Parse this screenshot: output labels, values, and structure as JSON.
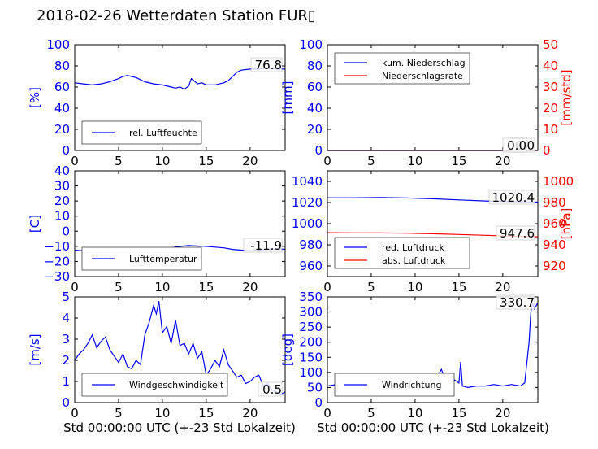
{
  "title": "2018-02-26 Wetterdaten Station FUR▯",
  "xlabel": "Std 00:00:00 UTC (+-23 Std Lokalzeit)",
  "colors": {
    "primary": "#0000ff",
    "secondary": "#ff0000",
    "light": "#8080ff"
  },
  "chart_data": [
    {
      "type": "line",
      "id": "humidity",
      "xlim": [
        0,
        24
      ],
      "ylim": [
        0,
        100
      ],
      "ylabel": "[%]",
      "xticks": [
        "0",
        "5",
        "10",
        "15",
        "20"
      ],
      "yticks": [
        "0",
        "20",
        "40",
        "60",
        "80",
        "100"
      ],
      "legend": [
        "rel. Luftfeuchte"
      ],
      "legend_position": "lower-left",
      "annotation": "76.8",
      "series": [
        {
          "name": "rel. Luftfeuchte",
          "color": "#0000ff",
          "x": [
            0,
            1,
            2,
            3,
            4,
            5,
            5.5,
            6,
            6.5,
            7,
            8,
            9,
            10,
            11,
            11.5,
            12,
            12.5,
            13,
            13.3,
            13.6,
            14,
            14.5,
            15,
            16,
            17,
            17.5,
            18,
            18.5,
            19,
            20,
            21,
            22,
            23,
            24
          ],
          "y": [
            64,
            63,
            62,
            63,
            65,
            68,
            70,
            71,
            70,
            69,
            65,
            63,
            62,
            60,
            59,
            60,
            58,
            61,
            68,
            66,
            63,
            64,
            62,
            62,
            64,
            66,
            70,
            74,
            76,
            77,
            77,
            78,
            77,
            77
          ]
        }
      ]
    },
    {
      "type": "line",
      "id": "precipitation",
      "xlim": [
        0,
        24
      ],
      "ylim": [
        0,
        100
      ],
      "ylabel": "[mm]",
      "y2lim": [
        0,
        50
      ],
      "y2label": "[mm/std]",
      "xticks": [
        "0",
        "5",
        "10",
        "15",
        "20"
      ],
      "yticks": [
        "0",
        "20",
        "40",
        "60",
        "80",
        "100"
      ],
      "y2ticks": [
        "0",
        "10",
        "20",
        "30",
        "40",
        "50"
      ],
      "legend": [
        "kum. Niederschlag",
        "Niederschlagsrate"
      ],
      "legend_position": "upper-left",
      "annotations": [
        "0.0",
        "0.0"
      ],
      "series": [
        {
          "name": "kum. Niederschlag",
          "color": "#0000ff",
          "x": [
            0,
            24
          ],
          "y": [
            0,
            0
          ]
        },
        {
          "name": "Niederschlagsrate",
          "color": "#ff0000",
          "x": [
            0,
            24
          ],
          "y": [
            0,
            0
          ]
        }
      ]
    },
    {
      "type": "line",
      "id": "temperature",
      "xlim": [
        0,
        24
      ],
      "ylim": [
        -30,
        40
      ],
      "ylabel": "[C]",
      "xticks": [
        "0",
        "5",
        "10",
        "15",
        "20"
      ],
      "yticks": [
        "−30",
        "−20",
        "−10",
        "0",
        "10",
        "20",
        "30",
        "40"
      ],
      "legend": [
        "Lufttemperatur"
      ],
      "legend_position": "lower-left",
      "annotation": "-11.9",
      "series": [
        {
          "name": "Lufttemperatur",
          "color": "#0000ff",
          "x": [
            0,
            2,
            4,
            6,
            8,
            10,
            11,
            12,
            13,
            14,
            15,
            16,
            17,
            18,
            19,
            20,
            21,
            22,
            23,
            24
          ],
          "y": [
            -12.5,
            -13.5,
            -14,
            -13.5,
            -13,
            -12,
            -11,
            -10,
            -9.5,
            -9.8,
            -10,
            -10.5,
            -11,
            -12,
            -12.5,
            -13,
            -12.5,
            -12,
            -11.9,
            -11.9
          ]
        }
      ]
    },
    {
      "type": "line",
      "id": "pressure",
      "xlim": [
        0,
        24
      ],
      "ylim": [
        950,
        1050
      ],
      "ylabel": "",
      "y2lim": [
        910,
        1010
      ],
      "y2label": "[hPa]",
      "xticks": [
        "0",
        "5",
        "10",
        "15",
        "20"
      ],
      "yticks": [
        "960",
        "980",
        "1000",
        "1020",
        "1040"
      ],
      "y2ticks": [
        "920",
        "940",
        "960",
        "980",
        "1000"
      ],
      "legend": [
        "red. Luftdruck",
        "abs. Luftdruck"
      ],
      "legend_position": "lower-left",
      "annotations": [
        "1020.4",
        "947.6"
      ],
      "series": [
        {
          "name": "red. Luftdruck",
          "color": "#0000ff",
          "x": [
            0,
            3,
            6,
            9,
            12,
            15,
            18,
            21,
            24
          ],
          "y": [
            1024.5,
            1024.5,
            1024.8,
            1024.3,
            1023.5,
            1022.5,
            1021.5,
            1020.8,
            1020.4
          ]
        },
        {
          "name": "abs. Luftdruck",
          "color": "#ff0000",
          "x": [
            0,
            3,
            6,
            9,
            12,
            15,
            18,
            21,
            24
          ],
          "y": [
            951.5,
            951.3,
            951.2,
            951,
            950.5,
            949.8,
            949,
            948.2,
            947.6
          ]
        }
      ]
    },
    {
      "type": "line",
      "id": "windspeed",
      "xlim": [
        0,
        24
      ],
      "ylim": [
        0,
        5
      ],
      "ylabel": "[m/s]",
      "xticks": [
        "0",
        "5",
        "10",
        "15",
        "20"
      ],
      "yticks": [
        "0",
        "1",
        "2",
        "3",
        "4",
        "5"
      ],
      "legend": [
        "Windgeschwindigkeit"
      ],
      "legend_position": "lower-left",
      "annotation": "0.5",
      "series": [
        {
          "name": "Windgeschwindigkeit",
          "color": "#0000ff",
          "x": [
            0,
            0.5,
            1,
            1.5,
            2,
            2.5,
            3,
            3.5,
            4,
            4.5,
            5,
            5.5,
            6,
            6.5,
            7,
            7.5,
            8,
            8.5,
            9,
            9.3,
            9.6,
            10,
            10.5,
            11,
            11.5,
            12,
            12.5,
            13,
            13.5,
            14,
            14.5,
            15,
            15.5,
            16,
            16.5,
            17,
            17.5,
            18,
            18.5,
            19,
            19.5,
            20,
            20.5,
            21,
            21.5,
            22,
            22.5,
            23,
            23.5,
            24
          ],
          "y": [
            2.0,
            2.3,
            2.5,
            2.8,
            3.2,
            2.6,
            2.9,
            3.1,
            2.5,
            2.2,
            1.9,
            2.3,
            1.7,
            1.6,
            2.0,
            1.8,
            3.2,
            3.8,
            4.6,
            4.2,
            4.8,
            3.3,
            3.6,
            2.8,
            3.9,
            2.7,
            2.8,
            2.3,
            2.8,
            2.1,
            2.4,
            1.3,
            1.6,
            2.0,
            1.7,
            2.5,
            1.8,
            1.5,
            1.2,
            1.3,
            0.9,
            1.0,
            1.2,
            1.3,
            0.8,
            0.9,
            0.6,
            0.5,
            0.4,
            0.5
          ]
        }
      ]
    },
    {
      "type": "line",
      "id": "winddirection",
      "xlim": [
        0,
        24
      ],
      "ylim": [
        0,
        350
      ],
      "ylabel": "[deg]",
      "xticks": [
        "0",
        "5",
        "10",
        "15",
        "20"
      ],
      "yticks": [
        "0",
        "50",
        "100",
        "150",
        "200",
        "250",
        "300",
        "350"
      ],
      "legend": [
        "Windrichtung"
      ],
      "legend_position": "lower-left",
      "annotation": "330.7",
      "series": [
        {
          "name": "Windrichtung",
          "color": "#0000ff",
          "x": [
            0,
            1,
            2,
            3,
            4,
            5,
            6,
            7,
            8,
            8.5,
            9,
            9.5,
            10,
            10.5,
            11,
            11.5,
            12,
            12.5,
            13,
            13.5,
            14,
            14.5,
            15,
            15.2,
            15.4,
            16,
            17,
            18,
            19,
            20,
            21,
            22,
            22.5,
            23,
            23.2,
            23.4,
            23.6,
            24
          ],
          "y": [
            55,
            60,
            50,
            55,
            50,
            45,
            55,
            60,
            70,
            85,
            60,
            55,
            90,
            70,
            55,
            75,
            60,
            85,
            110,
            70,
            60,
            75,
            65,
            135,
            55,
            50,
            55,
            55,
            60,
            55,
            60,
            55,
            65,
            200,
            300,
            330,
            310,
            330.7
          ]
        }
      ]
    }
  ]
}
